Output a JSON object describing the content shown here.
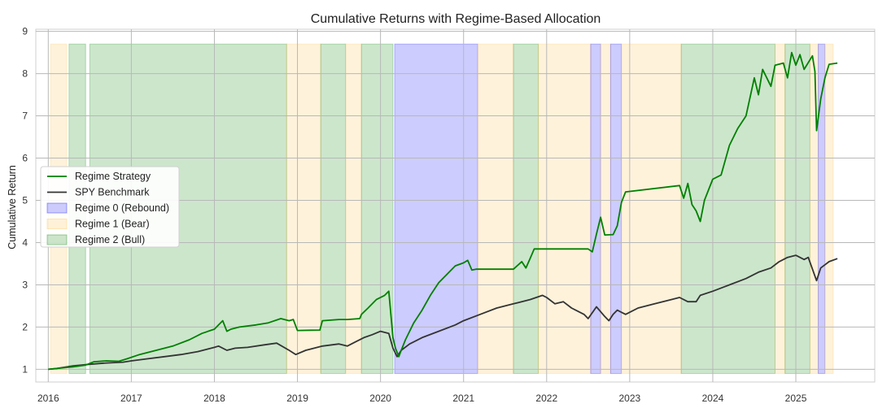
{
  "chart_data": {
    "type": "line",
    "title": "Cumulative Returns with Regime-Based Allocation",
    "xlabel": "",
    "ylabel": "Cumulative Return",
    "xlim": [
      2015.85,
      2025.95
    ],
    "ylim": [
      0.7,
      9.05
    ],
    "x_ticks": [
      "2016",
      "2017",
      "2018",
      "2019",
      "2020",
      "2021",
      "2022",
      "2023",
      "2024",
      "2025"
    ],
    "y_ticks": [
      "1",
      "2",
      "3",
      "4",
      "5",
      "6",
      "7",
      "8",
      "9"
    ],
    "grid": true,
    "legend_position": "center-left",
    "series": [
      {
        "name": "Regime Strategy",
        "color": "#008000",
        "x": [
          2016.0,
          2016.1,
          2016.2,
          2016.3,
          2016.45,
          2016.55,
          2016.7,
          2016.85,
          2016.95,
          2017.1,
          2017.3,
          2017.5,
          2017.7,
          2017.85,
          2018.0,
          2018.05,
          2018.1,
          2018.15,
          2018.2,
          2018.3,
          2018.5,
          2018.65,
          2018.8,
          2018.9,
          2018.95,
          2019.0,
          2019.27,
          2019.3,
          2019.5,
          2019.6,
          2019.75,
          2019.77,
          2019.85,
          2019.95,
          2020.05,
          2020.1,
          2020.15,
          2020.18,
          2020.22,
          2020.25,
          2020.3,
          2020.4,
          2020.5,
          2020.6,
          2020.7,
          2020.8,
          2020.9,
          2021.0,
          2021.05,
          2021.1,
          2021.15,
          2021.6,
          2021.7,
          2021.75,
          2021.8,
          2021.85,
          2021.9,
          2022.5,
          2022.55,
          2022.6,
          2022.65,
          2022.7,
          2022.8,
          2022.85,
          2022.9,
          2022.95,
          2023.6,
          2023.65,
          2023.7,
          2023.75,
          2023.8,
          2023.85,
          2023.9,
          2024.0,
          2024.1,
          2024.2,
          2024.3,
          2024.4,
          2024.5,
          2024.55,
          2024.6,
          2024.7,
          2024.75,
          2024.85,
          2024.9,
          2024.95,
          2025.0,
          2025.05,
          2025.1,
          2025.2,
          2025.23,
          2025.25,
          2025.3,
          2025.35,
          2025.4,
          2025.5
        ],
        "values": [
          1.0,
          1.02,
          1.04,
          1.06,
          1.1,
          1.18,
          1.2,
          1.19,
          1.25,
          1.35,
          1.45,
          1.55,
          1.7,
          1.85,
          1.95,
          2.05,
          2.15,
          1.9,
          1.95,
          2.0,
          2.05,
          2.1,
          2.2,
          2.15,
          2.18,
          1.92,
          1.93,
          2.15,
          2.18,
          2.18,
          2.2,
          2.3,
          2.45,
          2.65,
          2.75,
          2.85,
          1.75,
          1.5,
          1.3,
          1.45,
          1.7,
          2.1,
          2.4,
          2.75,
          3.05,
          3.25,
          3.45,
          3.52,
          3.58,
          3.35,
          3.37,
          3.37,
          3.55,
          3.4,
          3.62,
          3.85,
          3.85,
          3.85,
          3.78,
          4.2,
          4.6,
          4.18,
          4.19,
          4.4,
          4.95,
          5.2,
          5.35,
          5.05,
          5.4,
          4.9,
          4.75,
          4.5,
          5.0,
          5.5,
          5.6,
          6.3,
          6.7,
          7.0,
          7.9,
          7.5,
          8.1,
          7.7,
          8.2,
          8.25,
          7.9,
          8.5,
          8.2,
          8.45,
          8.1,
          8.42,
          8.05,
          6.65,
          7.4,
          7.9,
          8.22,
          8.25
        ]
      },
      {
        "name": "SPY Benchmark",
        "color": "#333333",
        "x": [
          2016.0,
          2016.1,
          2016.2,
          2016.3,
          2016.4,
          2016.5,
          2016.7,
          2016.9,
          2017.0,
          2017.2,
          2017.4,
          2017.6,
          2017.8,
          2018.0,
          2018.05,
          2018.15,
          2018.25,
          2018.4,
          2018.6,
          2018.75,
          2018.9,
          2018.98,
          2019.1,
          2019.3,
          2019.5,
          2019.6,
          2019.7,
          2019.8,
          2019.9,
          2020.0,
          2020.1,
          2020.15,
          2020.2,
          2020.25,
          2020.35,
          2020.5,
          2020.7,
          2020.9,
          2021.0,
          2021.2,
          2021.4,
          2021.6,
          2021.8,
          2021.95,
          2022.0,
          2022.1,
          2022.2,
          2022.3,
          2022.45,
          2022.5,
          2022.6,
          2022.7,
          2022.75,
          2022.8,
          2022.85,
          2022.95,
          2023.1,
          2023.3,
          2023.5,
          2023.6,
          2023.7,
          2023.8,
          2023.85,
          2024.0,
          2024.2,
          2024.4,
          2024.55,
          2024.7,
          2024.8,
          2024.9,
          2025.0,
          2025.1,
          2025.15,
          2025.25,
          2025.3,
          2025.4,
          2025.5
        ],
        "values": [
          1.0,
          1.02,
          1.05,
          1.08,
          1.1,
          1.12,
          1.15,
          1.17,
          1.2,
          1.25,
          1.3,
          1.35,
          1.42,
          1.52,
          1.55,
          1.45,
          1.5,
          1.52,
          1.58,
          1.62,
          1.45,
          1.35,
          1.45,
          1.55,
          1.6,
          1.55,
          1.65,
          1.75,
          1.82,
          1.9,
          1.85,
          1.5,
          1.3,
          1.45,
          1.6,
          1.75,
          1.9,
          2.05,
          2.15,
          2.3,
          2.45,
          2.55,
          2.65,
          2.75,
          2.7,
          2.55,
          2.6,
          2.45,
          2.3,
          2.2,
          2.48,
          2.25,
          2.15,
          2.3,
          2.4,
          2.3,
          2.45,
          2.55,
          2.65,
          2.7,
          2.6,
          2.6,
          2.75,
          2.85,
          3.0,
          3.15,
          3.3,
          3.4,
          3.55,
          3.65,
          3.7,
          3.6,
          3.65,
          3.1,
          3.4,
          3.55,
          3.62
        ]
      }
    ],
    "regime_legend": [
      {
        "name": "Regime 0 (Rebound)",
        "color": "#0000ff"
      },
      {
        "name": "Regime 1 (Bear)",
        "color": "#ffc04d"
      },
      {
        "name": "Regime 2 (Bull)",
        "color": "#008000"
      }
    ],
    "regime_spans": [
      {
        "regime": 1,
        "start": 2016.03,
        "end": 2016.22
      },
      {
        "regime": 2,
        "start": 2016.25,
        "end": 2016.45
      },
      {
        "regime": 2,
        "start": 2016.5,
        "end": 2018.87
      },
      {
        "regime": 1,
        "start": 2018.87,
        "end": 2019.28
      },
      {
        "regime": 2,
        "start": 2019.28,
        "end": 2019.58
      },
      {
        "regime": 1,
        "start": 2019.58,
        "end": 2019.77
      },
      {
        "regime": 2,
        "start": 2019.77,
        "end": 2020.15
      },
      {
        "regime": 0,
        "start": 2020.17,
        "end": 2021.17
      },
      {
        "regime": 1,
        "start": 2021.17,
        "end": 2021.6
      },
      {
        "regime": 2,
        "start": 2021.6,
        "end": 2021.9
      },
      {
        "regime": 1,
        "start": 2021.9,
        "end": 2022.53
      },
      {
        "regime": 0,
        "start": 2022.53,
        "end": 2022.65
      },
      {
        "regime": 1,
        "start": 2022.65,
        "end": 2022.77
      },
      {
        "regime": 0,
        "start": 2022.77,
        "end": 2022.9
      },
      {
        "regime": 1,
        "start": 2022.9,
        "end": 2023.62
      },
      {
        "regime": 2,
        "start": 2023.62,
        "end": 2024.75
      },
      {
        "regime": 1,
        "start": 2024.75,
        "end": 2024.87
      },
      {
        "regime": 2,
        "start": 2024.87,
        "end": 2025.17
      },
      {
        "regime": 1,
        "start": 2025.17,
        "end": 2025.27
      },
      {
        "regime": 0,
        "start": 2025.27,
        "end": 2025.35
      },
      {
        "regime": 1,
        "start": 2025.35,
        "end": 2025.45
      }
    ]
  }
}
